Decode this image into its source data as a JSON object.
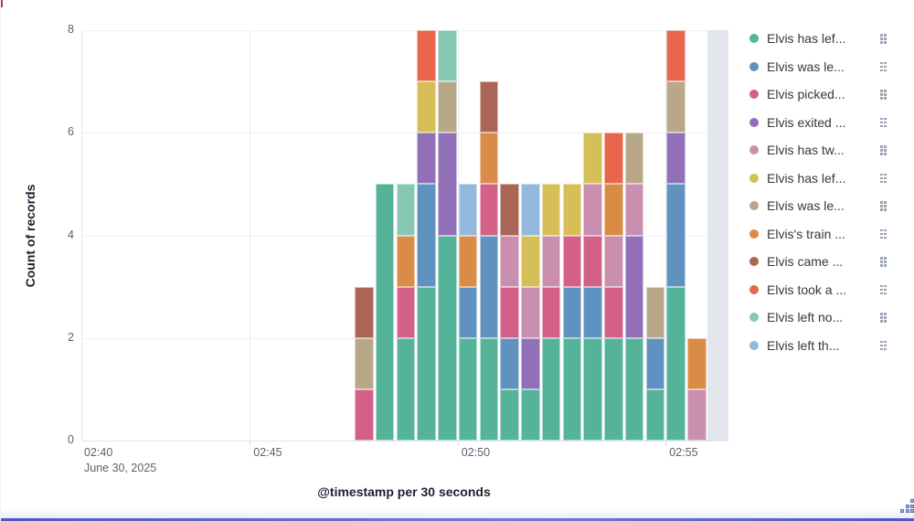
{
  "chart": {
    "y_axis_title": "Count of records",
    "x_axis_title": "@timestamp per 30 seconds"
  },
  "chart_data": {
    "type": "bar",
    "stacked": true,
    "ylabel": "Count of records",
    "xlabel": "@timestamp per 30 seconds",
    "ylim": [
      0,
      8
    ],
    "y_ticks": [
      "0",
      "2",
      "4",
      "6",
      "8"
    ],
    "y_tick_values": [
      0,
      2,
      4,
      6,
      8
    ],
    "grid": true,
    "legend_position": "right",
    "x_first_tick": {
      "label": "02:40",
      "sublabel": "June 30, 2025"
    },
    "x_ticks": [
      {
        "time": "02:45:00",
        "label": "02:45"
      },
      {
        "time": "02:50:00",
        "label": "02:50"
      },
      {
        "time": "02:55:00",
        "label": "02:55"
      }
    ],
    "bucket_interval_seconds": 30,
    "categories": [
      "02:47:30",
      "02:48:00",
      "02:48:30",
      "02:49:00",
      "02:49:30",
      "02:50:00",
      "02:50:30",
      "02:51:00",
      "02:51:30",
      "02:52:00",
      "02:52:30",
      "02:53:00",
      "02:53:30",
      "02:54:00",
      "02:54:30",
      "02:55:00",
      "02:55:30"
    ],
    "partial_bucket_time": "02:56:00",
    "series": [
      {
        "name": "Elvis has lef...",
        "color": "#54B399",
        "values": [
          0,
          5,
          2,
          3,
          4,
          2,
          2,
          1,
          1,
          2,
          2,
          2,
          2,
          2,
          1,
          3,
          0
        ]
      },
      {
        "name": "Elvis was le...",
        "color": "#6092C0",
        "values": [
          0,
          0,
          0,
          2,
          0,
          1,
          2,
          1,
          0,
          0,
          1,
          1,
          0,
          0,
          1,
          2,
          0
        ]
      },
      {
        "name": "Elvis picked...",
        "color": "#D36086",
        "values": [
          1,
          0,
          1,
          0,
          0,
          0,
          1,
          1,
          0,
          1,
          1,
          1,
          1,
          0,
          0,
          0,
          0
        ]
      },
      {
        "name": "Elvis exited ...",
        "color": "#9170B8",
        "values": [
          0,
          0,
          0,
          1,
          2,
          0,
          0,
          0,
          1,
          0,
          0,
          0,
          0,
          2,
          0,
          1,
          0
        ]
      },
      {
        "name": "Elvis has tw...",
        "color": "#CA8EAE",
        "values": [
          0,
          0,
          0,
          0,
          0,
          0,
          0,
          1,
          1,
          1,
          0,
          1,
          1,
          1,
          0,
          0,
          1
        ]
      },
      {
        "name": "Elvis has lef...",
        "color": "#D6BF57",
        "values": [
          0,
          0,
          0,
          1,
          0,
          0,
          0,
          0,
          1,
          1,
          1,
          1,
          0,
          0,
          0,
          0,
          0
        ]
      },
      {
        "name": "Elvis was le...",
        "color": "#B9A888",
        "values": [
          1,
          0,
          0,
          0,
          1,
          0,
          0,
          0,
          0,
          0,
          0,
          0,
          0,
          1,
          1,
          1,
          0
        ]
      },
      {
        "name": "Elvis's train ...",
        "color": "#DA8B45",
        "values": [
          0,
          0,
          1,
          0,
          0,
          1,
          1,
          0,
          0,
          0,
          0,
          0,
          1,
          0,
          0,
          0,
          1
        ]
      },
      {
        "name": "Elvis came ...",
        "color": "#AA6556",
        "values": [
          1,
          0,
          0,
          0,
          0,
          0,
          1,
          1,
          0,
          0,
          0,
          0,
          0,
          0,
          0,
          0,
          0
        ]
      },
      {
        "name": "Elvis took a ...",
        "color": "#E7664C",
        "values": [
          0,
          0,
          0,
          1,
          0,
          0,
          0,
          0,
          0,
          0,
          0,
          0,
          1,
          0,
          0,
          1,
          0
        ]
      },
      {
        "name": "Elvis left no...",
        "color": "#85C7B1",
        "values": [
          0,
          0,
          1,
          0,
          1,
          0,
          0,
          0,
          0,
          0,
          0,
          0,
          0,
          0,
          0,
          0,
          0
        ]
      },
      {
        "name": "Elvis left th...",
        "color": "#92B8DB",
        "values": [
          0,
          0,
          0,
          0,
          0,
          1,
          0,
          0,
          1,
          0,
          0,
          0,
          0,
          0,
          0,
          0,
          0
        ]
      }
    ]
  }
}
